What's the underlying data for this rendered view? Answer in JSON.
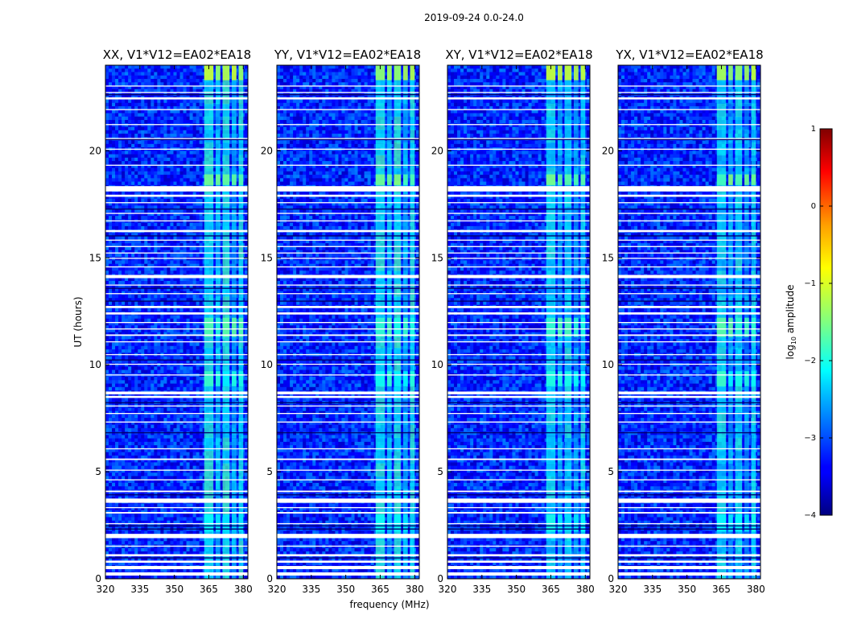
{
  "chart_data": {
    "type": "heatmap",
    "suptitle": "2019-09-24 0.0-24.0",
    "xlabel": "frequency (MHz)",
    "ylabel": "UT (hours)",
    "xlim": [
      320,
      382
    ],
    "ylim": [
      0,
      24
    ],
    "xticks": [
      320,
      335,
      350,
      365,
      380
    ],
    "yticks": [
      0,
      5,
      10,
      15,
      20
    ],
    "panels": [
      {
        "title": "XX, V1*V12=EA02*EA18",
        "pol": "XX"
      },
      {
        "title": "YY, V1*V12=EA02*EA18",
        "pol": "YY"
      },
      {
        "title": "XY, V1*V12=EA02*EA18",
        "pol": "XY"
      },
      {
        "title": "YX, V1*V12=EA02*EA18",
        "pol": "YX"
      }
    ],
    "colorbar": {
      "label": "log10 amplitude",
      "label_base": "log",
      "label_sub": "10",
      "label_rest": " amplitude",
      "range": [
        -4,
        1
      ],
      "ticks": [
        "1",
        "0",
        "−1",
        "−2",
        "−3",
        "−4"
      ],
      "colormap": "jet"
    },
    "background_level": -3.2,
    "rfi_bands": [
      {
        "f_start": 363,
        "f_end": 367,
        "level": -2.0
      },
      {
        "f_start": 368,
        "f_end": 370,
        "level": -2.3
      },
      {
        "f_start": 371,
        "f_end": 374,
        "level": -2.0
      },
      {
        "f_start": 375,
        "f_end": 377,
        "level": -2.4
      },
      {
        "f_start": 378,
        "f_end": 380,
        "level": -2.0
      }
    ],
    "strong_rfi_times": [
      {
        "t_start": 23.3,
        "t_end": 24.0,
        "level": -1.2
      },
      {
        "t_start": 18.4,
        "t_end": 18.9,
        "level": -1.6
      },
      {
        "t_start": 9.0,
        "t_end": 9.7,
        "level": -2.0
      },
      {
        "t_start": 11.3,
        "t_end": 12.2,
        "level": -1.8
      },
      {
        "t_start": 2.2,
        "t_end": 3.0,
        "level": -2.2
      }
    ],
    "flagged_time_ranges": [
      [
        0.15,
        0.3
      ],
      [
        0.45,
        0.6
      ],
      [
        0.75,
        0.85
      ],
      [
        1.05,
        1.15
      ],
      [
        1.5,
        1.55
      ],
      [
        1.9,
        2.1
      ],
      [
        2.55,
        2.6
      ],
      [
        3.05,
        3.12
      ],
      [
        3.3,
        3.35
      ],
      [
        3.55,
        3.75
      ],
      [
        4.05,
        4.12
      ],
      [
        4.6,
        4.65
      ],
      [
        5.05,
        5.1
      ],
      [
        5.55,
        5.62
      ],
      [
        6.05,
        6.1
      ],
      [
        7.3,
        7.35
      ],
      [
        7.7,
        7.75
      ],
      [
        8.05,
        8.1
      ],
      [
        8.45,
        8.55
      ],
      [
        8.62,
        8.75
      ],
      [
        9.5,
        9.55
      ],
      [
        10.0,
        10.05
      ],
      [
        10.45,
        10.5
      ],
      [
        11.05,
        11.1
      ],
      [
        11.35,
        11.42
      ],
      [
        11.65,
        11.7
      ],
      [
        11.95,
        12.0
      ],
      [
        12.35,
        12.45
      ],
      [
        12.65,
        12.75
      ],
      [
        13.3,
        13.35
      ],
      [
        13.7,
        13.75
      ],
      [
        14.05,
        14.2
      ],
      [
        14.55,
        14.6
      ],
      [
        14.95,
        15.0
      ],
      [
        15.2,
        15.25
      ],
      [
        15.5,
        15.55
      ],
      [
        15.8,
        15.85
      ],
      [
        16.2,
        16.3
      ],
      [
        16.7,
        16.75
      ],
      [
        17.05,
        17.1
      ],
      [
        17.55,
        17.6
      ],
      [
        17.85,
        17.95
      ],
      [
        18.1,
        18.35
      ],
      [
        19.3,
        19.35
      ],
      [
        20.05,
        20.1
      ],
      [
        20.55,
        20.6
      ],
      [
        21.2,
        21.25
      ],
      [
        21.9,
        21.95
      ],
      [
        22.4,
        22.5
      ],
      [
        22.7,
        22.75
      ],
      [
        23.0,
        23.05
      ]
    ],
    "dark_time_ranges": [
      [
        0.95,
        1.0
      ],
      [
        2.3,
        2.35
      ],
      [
        2.45,
        2.5
      ],
      [
        3.9,
        3.95
      ],
      [
        6.8,
        6.85
      ],
      [
        8.2,
        8.25
      ],
      [
        10.2,
        10.25
      ],
      [
        12.95,
        13.0
      ],
      [
        13.55,
        13.6
      ],
      [
        16.0,
        16.05
      ],
      [
        17.25,
        17.3
      ],
      [
        20.5,
        20.55
      ],
      [
        22.6,
        22.65
      ]
    ]
  }
}
